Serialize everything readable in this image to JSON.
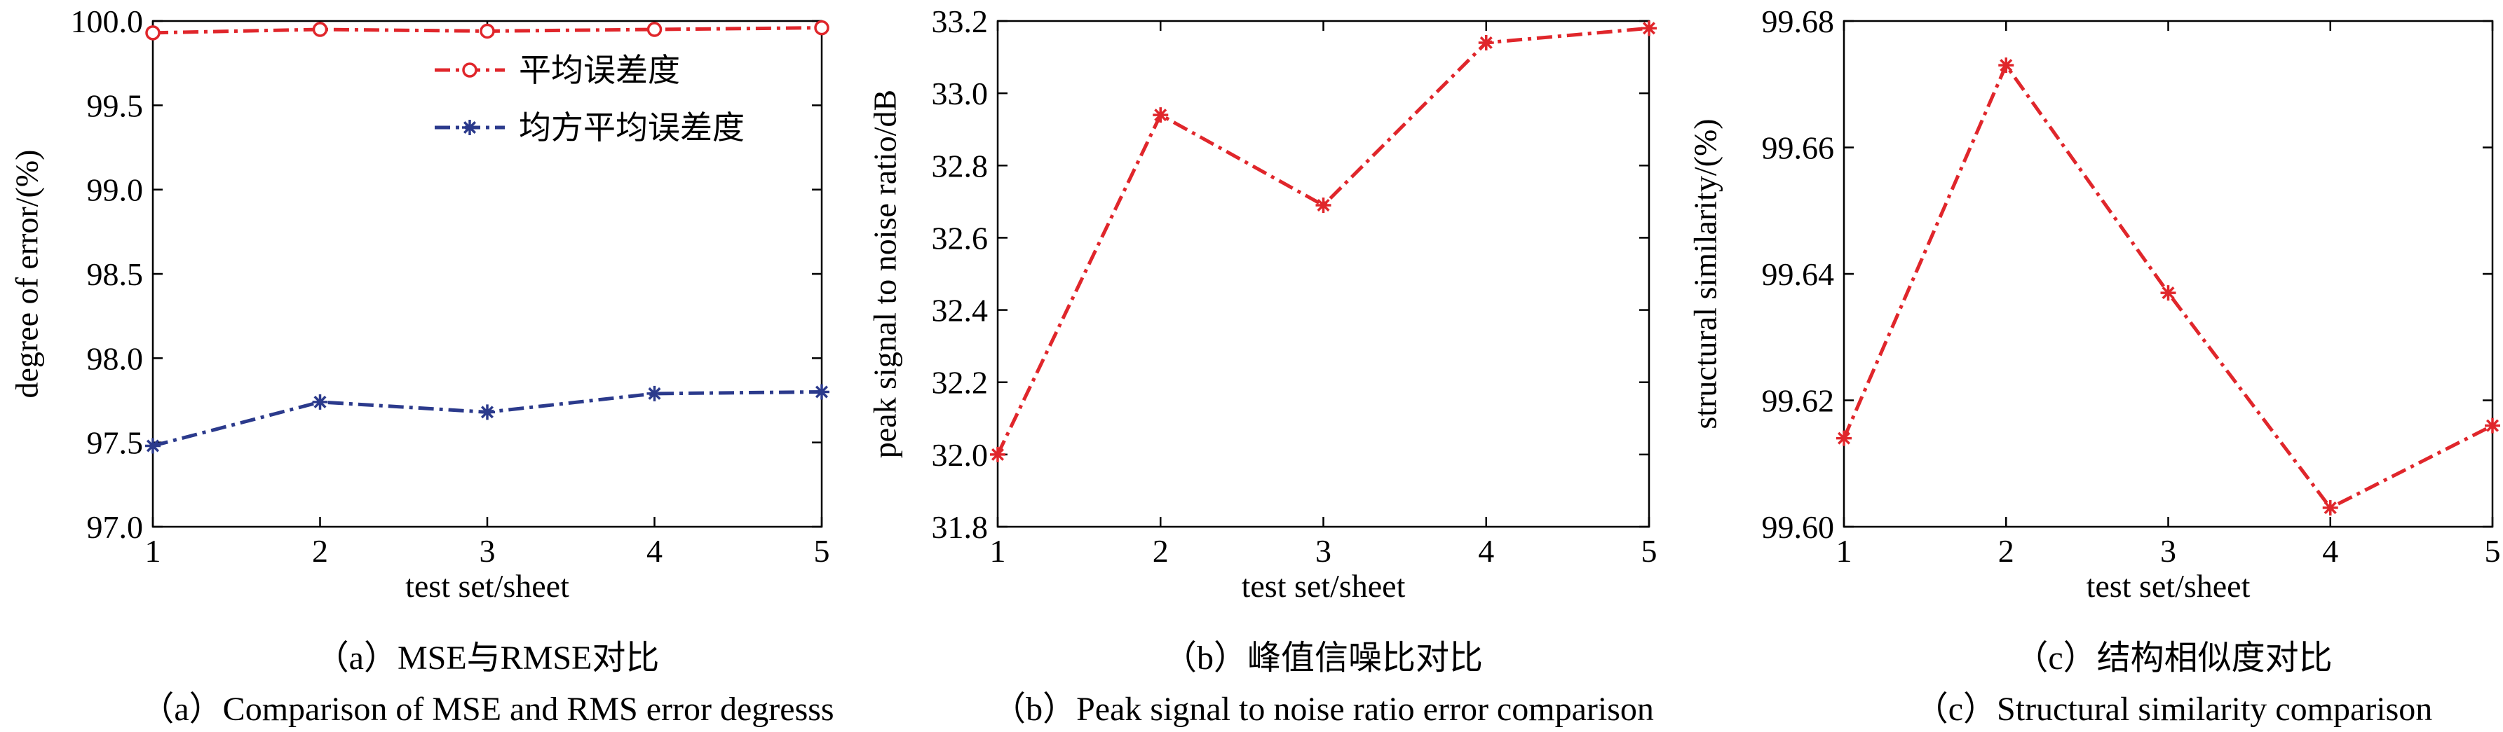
{
  "chart_data": [
    {
      "type": "line",
      "xlabel": "test set/sheet",
      "ylabel": "degree of error/(%)",
      "x": [
        1,
        2,
        3,
        4,
        5
      ],
      "xlim": [
        1,
        5
      ],
      "ylim": [
        97.0,
        100.0
      ],
      "yticks": [
        97.0,
        97.5,
        98.0,
        98.5,
        99.0,
        99.5,
        100.0
      ],
      "ytick_labels": [
        "97.0",
        "97.5",
        "98.0",
        "98.5",
        "99.0",
        "99.5",
        "100.0"
      ],
      "xtick_labels": [
        "1",
        "2",
        "3",
        "4",
        "5"
      ],
      "legend": "top-right",
      "grid": false,
      "series": [
        {
          "name": "平均误差度",
          "values": [
            99.93,
            99.95,
            99.94,
            99.95,
            99.96
          ],
          "color": "#e0262b",
          "marker": "circle"
        },
        {
          "name": "均方平均误差度",
          "values": [
            97.48,
            97.74,
            97.68,
            97.79,
            97.8
          ],
          "color": "#2b3a8c",
          "marker": "star"
        }
      ],
      "caption_cn": "（a）MSE与RMSE对比",
      "caption_en": "（a）Comparison of MSE and RMS error degresss"
    },
    {
      "type": "line",
      "xlabel": "test set/sheet",
      "ylabel": "peak signal to noise ratio/dB",
      "x": [
        1,
        2,
        3,
        4,
        5
      ],
      "xlim": [
        1,
        5
      ],
      "ylim": [
        31.8,
        33.2
      ],
      "yticks": [
        31.8,
        32.0,
        32.2,
        32.4,
        32.6,
        32.8,
        33.0,
        33.2
      ],
      "ytick_labels": [
        "31.8",
        "32.0",
        "32.2",
        "32.4",
        "32.6",
        "32.8",
        "33.0",
        "33.2"
      ],
      "xtick_labels": [
        "1",
        "2",
        "3",
        "4",
        "5"
      ],
      "grid": false,
      "series": [
        {
          "values": [
            32.0,
            32.94,
            32.69,
            33.14,
            33.18
          ],
          "color": "#e0262b",
          "marker": "star"
        }
      ],
      "caption_cn": "（b）峰值信噪比对比",
      "caption_en": "（b）Peak signal to noise ratio error comparison"
    },
    {
      "type": "line",
      "xlabel": "test set/sheet",
      "ylabel": "structural similarity/(%)",
      "x": [
        1,
        2,
        3,
        4,
        5
      ],
      "xlim": [
        1,
        5
      ],
      "ylim": [
        99.6,
        99.68
      ],
      "yticks": [
        99.6,
        99.62,
        99.64,
        99.66,
        99.68
      ],
      "ytick_labels": [
        "99.60",
        "99.62",
        "99.64",
        "99.66",
        "99.68"
      ],
      "xtick_labels": [
        "1",
        "2",
        "3",
        "4",
        "5"
      ],
      "grid": false,
      "series": [
        {
          "values": [
            99.614,
            99.673,
            99.637,
            99.603,
            99.616
          ],
          "color": "#e0262b",
          "marker": "star"
        }
      ],
      "caption_cn": "（c）结构相似度对比",
      "caption_en": "（c）Structural similarity comparison"
    }
  ]
}
